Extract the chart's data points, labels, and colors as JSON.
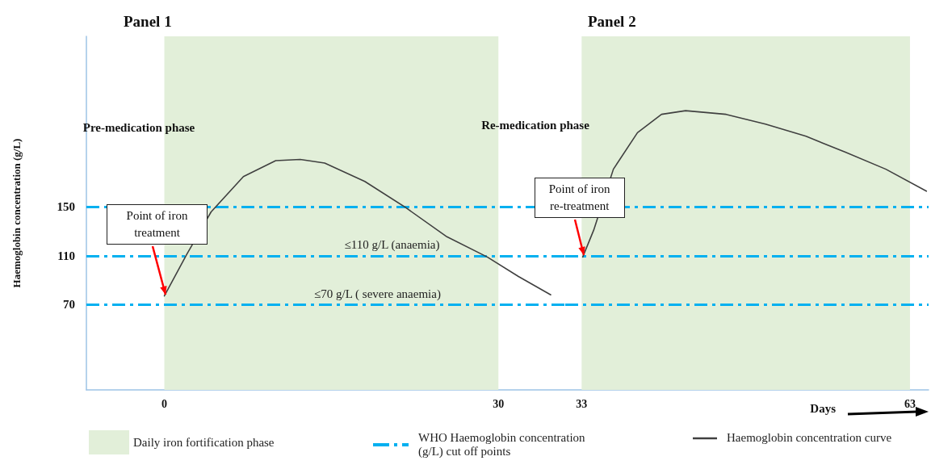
{
  "chart_data": [
    {
      "type": "line",
      "title": "Panel 1",
      "ylabel": "Haemoglobin concentration (g/L)",
      "annotations": [
        "Pre-medication phase",
        {
          "text": "Point of iron treatment",
          "x": 0,
          "y": 77
        },
        "WHO Haemoglobin concentration (g/L) cut off points"
      ],
      "series": [
        {
          "name": "Haemoglobin concentration curve",
          "color": "#404040",
          "x": [
            0,
            2,
            4.2,
            7.1,
            10,
            12.2,
            14.4,
            18,
            21.6,
            25.3,
            29,
            31.8,
            34.7
          ],
          "values": [
            77,
            111,
            146,
            175,
            188,
            189,
            186,
            171,
            150,
            126,
            109,
            93,
            78
          ]
        }
      ],
      "xlim": [
        -7,
        36
      ],
      "xticks": [
        0,
        30
      ],
      "ylim": [
        0,
        290
      ],
      "yticks": [
        70,
        110,
        150
      ],
      "bands": [
        {
          "axis": "x",
          "from": 0,
          "to": 30,
          "label": "Daily iron fortification phase",
          "color": "#e2efd9"
        }
      ],
      "ref_lines": [
        {
          "axis": "y",
          "value": 150,
          "label": null,
          "color": "#00b0f0",
          "line_style": "dashed"
        },
        {
          "axis": "y",
          "value": 110,
          "label": "≤110 g/L (anaemia)",
          "color": "#00b0f0",
          "line_style": "dashed"
        },
        {
          "axis": "y",
          "value": 70,
          "label": "≤70 g/L ( severe anaemia)",
          "color": "#00b0f0",
          "line_style": "dashed"
        }
      ],
      "grid": false,
      "marker": "none",
      "line_style": "solid",
      "legend": "bottom"
    },
    {
      "type": "line",
      "title": "Panel 2",
      "xlabel": "Days",
      "annotations": [
        "Re-medication phase",
        {
          "text": "Point of iron re-treatment",
          "x": 33.1,
          "y": 109
        }
      ],
      "series": [
        {
          "color": "#404040",
          "x": [
            33.1,
            34.1,
            35.9,
            38.1,
            40.3,
            42.5,
            46.2,
            49.8,
            53.5,
            57.1,
            60.8,
            64.5
          ],
          "values": [
            109,
            131,
            181,
            211,
            226,
            229,
            226,
            218,
            208,
            195,
            181,
            163
          ]
        }
      ],
      "xlim": [
        31.5,
        64.7
      ],
      "xticks": [
        33,
        63
      ],
      "ylim": [
        0,
        290
      ],
      "yticks": [
        70,
        110,
        150
      ],
      "tick_labels": "x",
      "bands": [
        {
          "axis": "x",
          "from": 33,
          "to": 63,
          "color": "#e2efd9"
        }
      ],
      "ref_lines": [
        {
          "axis": "y",
          "value": 150,
          "color": "#00b0f0",
          "line_style": "dashed"
        },
        {
          "axis": "y",
          "value": 110,
          "color": "#00b0f0",
          "line_style": "dashed"
        },
        {
          "axis": "y",
          "value": 70,
          "color": "#00b0f0",
          "line_style": "dashed"
        }
      ],
      "grid": false,
      "marker": "none",
      "line_style": "solid"
    }
  ]
}
